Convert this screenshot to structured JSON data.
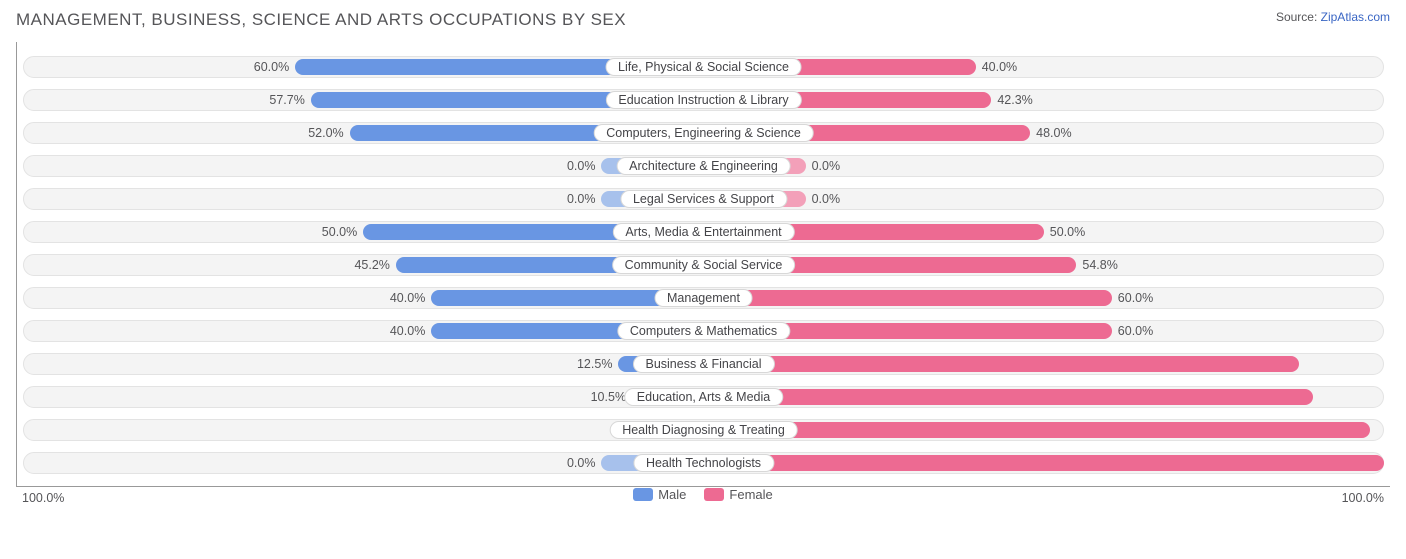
{
  "title": "MANAGEMENT, BUSINESS, SCIENCE AND ARTS OCCUPATIONS BY SEX",
  "source_prefix": "Source: ",
  "source_link": "ZipAtlas.com",
  "axis": {
    "left": "100.0%",
    "right": "100.0%"
  },
  "legend": {
    "male": "Male",
    "female": "Female"
  },
  "colors": {
    "male": "#6996e3",
    "male_zero": "#a7c1ec",
    "female": "#ed6a92",
    "female_zero": "#f3a0b9",
    "track_bg": "#f4f4f4",
    "track_border": "#e3e3e3",
    "label_border": "#d8d8d8",
    "text": "#555558",
    "source_link": "#3a66c4",
    "background": "#ffffff",
    "axis_line": "#999999"
  },
  "chart": {
    "type": "diverging-bar",
    "value_label_inside_threshold": 80,
    "zero_bar_width_pct": 15,
    "font_size_pt": 12.5,
    "title_font_size_pt": 17,
    "rows": [
      {
        "label": "Life, Physical & Social Science",
        "male": 60.0,
        "female": 40.0
      },
      {
        "label": "Education Instruction & Library",
        "male": 57.7,
        "female": 42.3
      },
      {
        "label": "Computers, Engineering & Science",
        "male": 52.0,
        "female": 48.0
      },
      {
        "label": "Architecture & Engineering",
        "male": 0.0,
        "female": 0.0
      },
      {
        "label": "Legal Services & Support",
        "male": 0.0,
        "female": 0.0
      },
      {
        "label": "Arts, Media & Entertainment",
        "male": 50.0,
        "female": 50.0
      },
      {
        "label": "Community & Social Service",
        "male": 45.2,
        "female": 54.8
      },
      {
        "label": "Management",
        "male": 40.0,
        "female": 60.0
      },
      {
        "label": "Computers & Mathematics",
        "male": 40.0,
        "female": 60.0
      },
      {
        "label": "Business & Financial",
        "male": 12.5,
        "female": 87.5
      },
      {
        "label": "Education, Arts & Media",
        "male": 10.5,
        "female": 89.5
      },
      {
        "label": "Health Diagnosing & Treating",
        "male": 2.0,
        "female": 98.0
      },
      {
        "label": "Health Technologists",
        "male": 0.0,
        "female": 100.0
      }
    ]
  }
}
